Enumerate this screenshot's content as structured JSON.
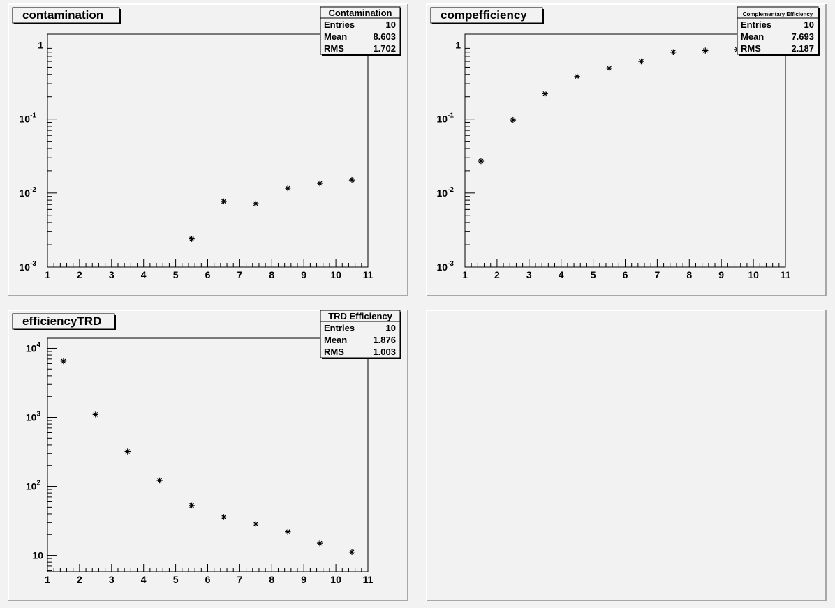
{
  "chart_data": [
    {
      "type": "scatter",
      "title": "contamination",
      "stats": {
        "name": "Contamination",
        "entries_label": "Entries",
        "entries": "10",
        "mean_label": "Mean",
        "mean": "8.603",
        "rms_label": "RMS",
        "rms": "1.702"
      },
      "x": [
        5.5,
        6.5,
        7.5,
        8.5,
        9.5,
        10.5
      ],
      "y": [
        0.0024,
        0.0077,
        0.0072,
        0.0116,
        0.0135,
        0.015
      ],
      "xlim": [
        1,
        11
      ],
      "ylim": [
        0.001,
        1.4
      ],
      "yscale": "log",
      "xticks": [
        "1",
        "2",
        "3",
        "4",
        "5",
        "6",
        "7",
        "8",
        "9",
        "10",
        "11"
      ],
      "yticks": [
        {
          "value": 1,
          "label": "1"
        },
        {
          "value": 0.1,
          "label": "10",
          "exp": "-1"
        },
        {
          "value": 0.01,
          "label": "10",
          "exp": "-2"
        },
        {
          "value": 0.001,
          "label": "10",
          "exp": "-3"
        }
      ],
      "grid": false,
      "marker": "star"
    },
    {
      "type": "scatter",
      "title": "compefficiency",
      "stats": {
        "name": "Complementary Efficiency",
        "entries_label": "Entries",
        "entries": "10",
        "mean_label": "Mean",
        "mean": "7.693",
        "rms_label": "RMS",
        "rms": "2.187"
      },
      "x": [
        1.5,
        2.5,
        3.5,
        4.5,
        5.5,
        6.5,
        7.5,
        8.5,
        9.5
      ],
      "y": [
        0.027,
        0.097,
        0.22,
        0.375,
        0.485,
        0.6,
        0.8,
        0.84,
        0.87
      ],
      "xlim": [
        1,
        11
      ],
      "ylim": [
        0.001,
        1.4
      ],
      "yscale": "log",
      "xticks": [
        "1",
        "2",
        "3",
        "4",
        "5",
        "6",
        "7",
        "8",
        "9",
        "10",
        "11"
      ],
      "yticks": [
        {
          "value": 1,
          "label": "1"
        },
        {
          "value": 0.1,
          "label": "10",
          "exp": "-1"
        },
        {
          "value": 0.01,
          "label": "10",
          "exp": "-2"
        },
        {
          "value": 0.001,
          "label": "10",
          "exp": "-3"
        }
      ],
      "grid": false,
      "marker": "star"
    },
    {
      "type": "scatter",
      "title": "efficiencyTRD",
      "stats": {
        "name": "TRD Efficiency",
        "entries_label": "Entries",
        "entries": "10",
        "mean_label": "Mean",
        "mean": "1.876",
        "rms_label": "RMS",
        "rms": "1.003"
      },
      "x": [
        1.5,
        2.5,
        3.5,
        4.5,
        5.5,
        6.5,
        7.5,
        8.5,
        9.5,
        10.5
      ],
      "y": [
        6500,
        1100,
        320,
        122,
        53,
        36,
        28.5,
        22,
        15,
        11.2
      ],
      "xlim": [
        1,
        11
      ],
      "ylim": [
        5.8,
        14000
      ],
      "yscale": "log",
      "xticks": [
        "1",
        "2",
        "3",
        "4",
        "5",
        "6",
        "7",
        "8",
        "9",
        "10",
        "11"
      ],
      "yticks": [
        {
          "value": 10000,
          "label": "10",
          "exp": "4"
        },
        {
          "value": 1000,
          "label": "10",
          "exp": "3"
        },
        {
          "value": 100,
          "label": "10",
          "exp": "2"
        },
        {
          "value": 10,
          "label": "10"
        }
      ],
      "grid": false,
      "marker": "star"
    }
  ]
}
